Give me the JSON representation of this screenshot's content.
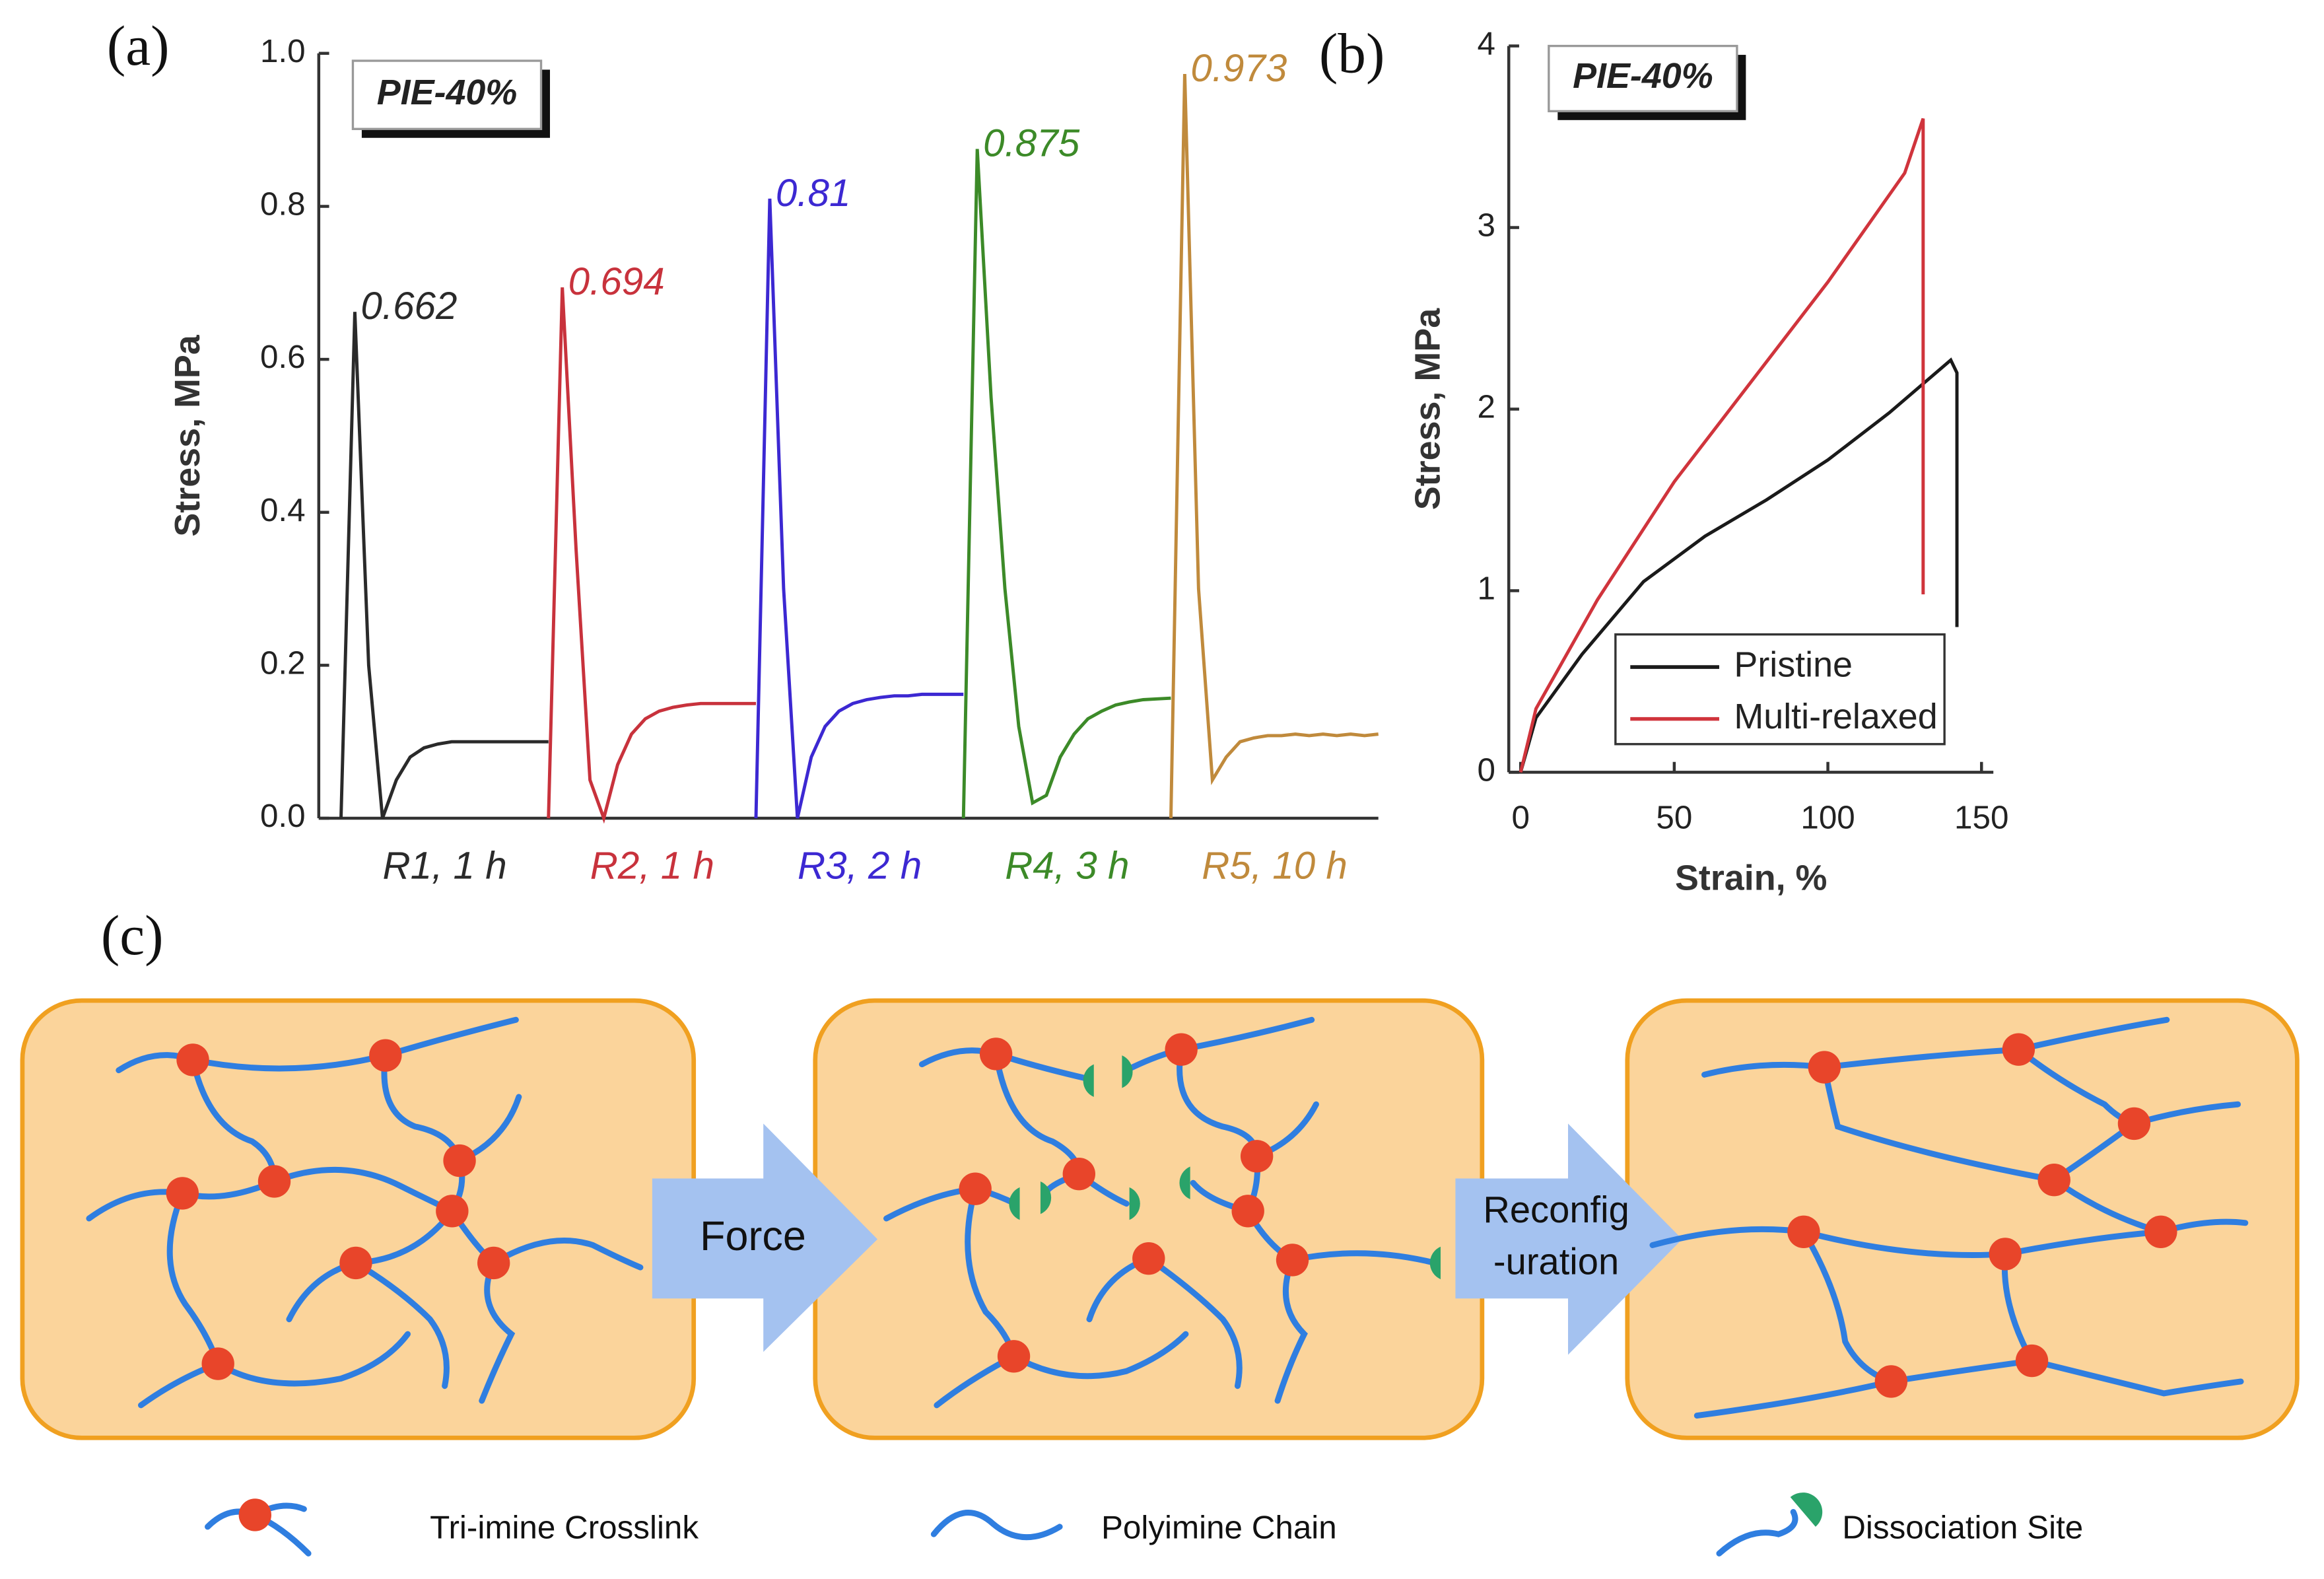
{
  "panel_labels": [
    "(a)",
    "(b)",
    "(c)"
  ],
  "chart_data": [
    {
      "type": "line",
      "annotation": "PIE-40%",
      "y_label": "Stress, MPa",
      "ylim": [
        0,
        1
      ],
      "yticks": [
        {
          "value": 0,
          "label": "0.0"
        },
        0.2,
        0.4,
        0.6,
        0.8,
        {
          "value": 1,
          "label": "1.0"
        }
      ],
      "series": [
        {
          "name": "R1, 1 h",
          "color": "#2a2a2a",
          "values": [
            0,
            0.662,
            0.2,
            0,
            0.05,
            0.08,
            0.092,
            0.097,
            0.1,
            0.1,
            0.1,
            0.1,
            0.1,
            0.1,
            0.1,
            0.1
          ]
        },
        {
          "name": "R2, 1 h",
          "color": "#c8323c",
          "values": [
            0,
            0.694,
            0.35,
            0.05,
            0,
            0.07,
            0.11,
            0.13,
            0.14,
            0.145,
            0.148,
            0.15,
            0.15,
            0.15,
            0.15,
            0.15
          ]
        },
        {
          "name": "R3, 2 h",
          "color": "#3c28d2",
          "values": [
            0,
            0.81,
            0.3,
            0,
            0.08,
            0.12,
            0.14,
            0.15,
            0.155,
            0.158,
            0.16,
            0.16,
            0.162,
            0.162,
            0.162,
            0.162
          ]
        },
        {
          "name": "R4, 3 h",
          "color": "#3c8a28",
          "values": [
            0,
            0.875,
            0.55,
            0.3,
            0.12,
            0.02,
            0.03,
            0.08,
            0.11,
            0.13,
            0.14,
            0.148,
            0.152,
            0.155,
            0.156,
            0.157
          ]
        },
        {
          "name": "R5, 10 h",
          "color": "#c08a3c",
          "values": [
            0,
            0.973,
            0.3,
            0.05,
            0.08,
            0.1,
            0.105,
            0.108,
            0.108,
            0.11,
            0.108,
            0.11,
            0.108,
            0.11,
            0.108,
            0.11
          ]
        }
      ]
    },
    {
      "type": "line",
      "annotation": "PIE-40%",
      "y_label": "Stress, MPa",
      "x_label": "Strain, %",
      "xlim": [
        0,
        150
      ],
      "xticks": [
        0,
        50,
        100,
        150
      ],
      "ylim": [
        0,
        4
      ],
      "yticks": [
        0,
        1,
        2,
        3,
        4
      ],
      "legend": "lower right",
      "series": [
        {
          "name": "Pristine",
          "color": "#1a1a1a",
          "x": [
            0,
            5,
            20,
            40,
            60,
            80,
            100,
            120,
            140,
            142,
            142
          ],
          "values": [
            0,
            0.3,
            0.65,
            1.05,
            1.3,
            1.5,
            1.72,
            1.98,
            2.27,
            2.2,
            0.8
          ]
        },
        {
          "name": "Multi-relaxed",
          "color": "#d0343c",
          "x": [
            0,
            5,
            25,
            50,
            75,
            100,
            125,
            131,
            131,
            131
          ],
          "values": [
            0,
            0.35,
            0.95,
            1.6,
            2.15,
            2.7,
            3.3,
            3.6,
            2.5,
            0.98
          ]
        }
      ]
    }
  ],
  "diagram": {
    "arrows": [
      [
        "Force"
      ],
      [
        "Reconfig",
        "-uration"
      ]
    ],
    "legend": [
      "Tri-imine Crosslink",
      "Polyimine Chain",
      "Dissociation Site"
    ]
  }
}
